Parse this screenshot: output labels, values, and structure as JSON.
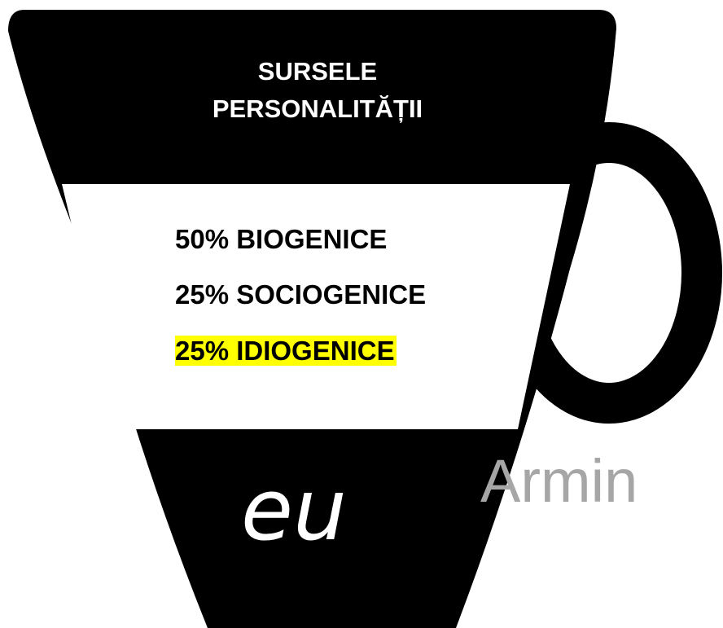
{
  "title": {
    "lines": [
      "SURSELE",
      "PERSONALITĂȚII"
    ]
  },
  "items": [
    "50% BIOGENICE",
    "25% SOCIOGENICE",
    "25% IDIOGENICE"
  ],
  "cup_label": "eu",
  "watermark": "Armin"
}
